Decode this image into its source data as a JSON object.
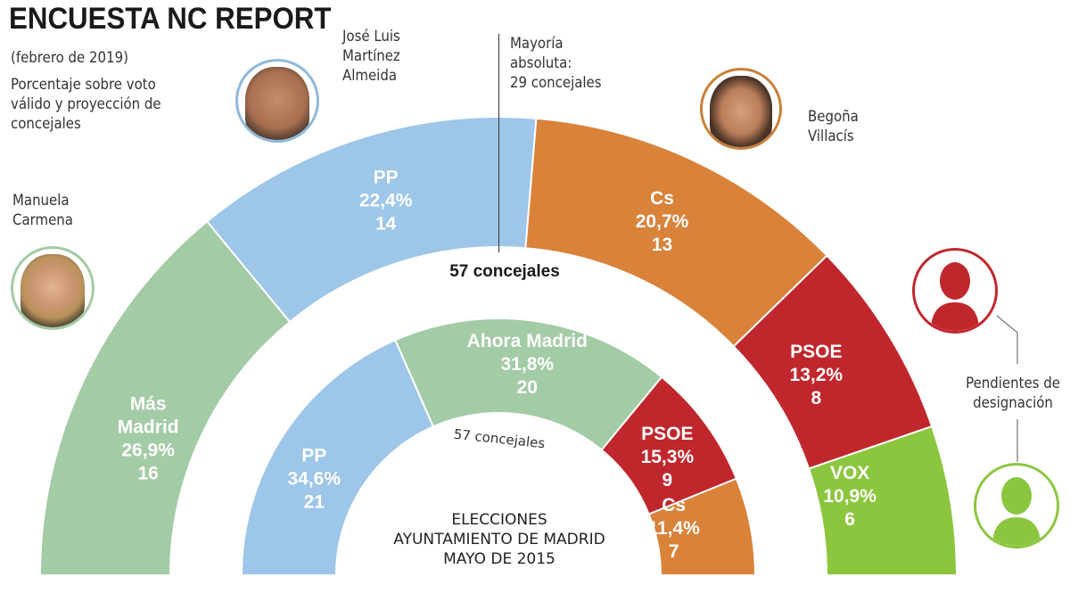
{
  "header": {
    "title": "ENCUESTA NC REPORT",
    "date": "(febrero de 2019)",
    "description": "Porcentaje sobre voto válido y proyección de concejales"
  },
  "majority": {
    "label_line1": "Mayoría",
    "label_line2": "absoluta:",
    "label_line3": "29 concejales"
  },
  "candidates": [
    {
      "name_line1": "José Luis",
      "name_line2": "Martínez",
      "name_line3": "Almeida",
      "party": "PP",
      "ring_color": "#8fb9d9"
    },
    {
      "name_line1": "Begoña",
      "name_line2": "Villacís",
      "party": "Cs",
      "ring_color": "#c8803a"
    },
    {
      "name_line1": "Manuela",
      "name_line2": "Carmena",
      "party": "Más Madrid",
      "ring_color": "#a3cba5"
    }
  ],
  "pending": {
    "label_line1": "Pendientes de",
    "label_line2": "designación",
    "colors": [
      "#c0272d",
      "#8cc63f"
    ]
  },
  "chart_data": [
    {
      "type": "pie",
      "variant": "half-donut",
      "title": "Encuesta NC Report (febrero de 2019)",
      "total_label": "57 concejales",
      "total_seats": 57,
      "categories": [
        "Más Madrid",
        "PP",
        "Cs",
        "PSOE",
        "VOX"
      ],
      "percent_labels": [
        "26,9%",
        "22,4%",
        "20,7%",
        "13,2%",
        "10,9%"
      ],
      "percent": [
        26.9,
        22.4,
        20.7,
        13.2,
        10.9
      ],
      "seats": [
        16,
        14,
        13,
        8,
        6
      ],
      "colors": [
        "#a3cba5",
        "#9dc6e8",
        "#d9823a",
        "#c0272d",
        "#8cc63f"
      ]
    },
    {
      "type": "pie",
      "variant": "half-donut",
      "title": "Elecciones Ayuntamiento de Madrid mayo de 2015",
      "title_line1": "ELECCIONES",
      "title_line2": "AYUNTAMIENTO DE MADRID",
      "title_line3": "MAYO DE 2015",
      "total_label": "57 concejales",
      "total_seats": 57,
      "categories": [
        "PP",
        "Ahora Madrid",
        "PSOE",
        "Cs"
      ],
      "percent_labels": [
        "34,6%",
        "31,8%",
        "15,3%",
        "11,4%"
      ],
      "percent": [
        34.6,
        31.8,
        15.3,
        11.4
      ],
      "seats": [
        21,
        20,
        9,
        7
      ],
      "colors": [
        "#9dc6e8",
        "#a3cba5",
        "#c0272d",
        "#d9823a"
      ]
    }
  ]
}
